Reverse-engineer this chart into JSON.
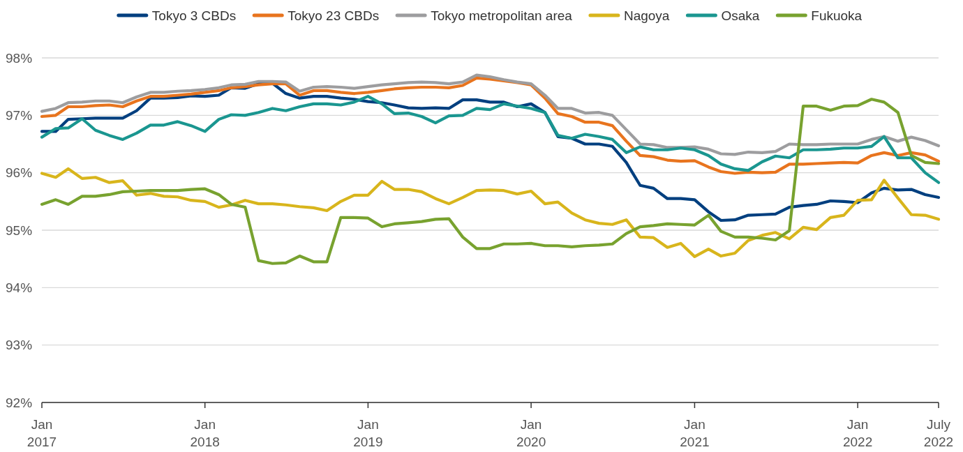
{
  "chart_data": {
    "type": "line",
    "x": [
      "2017-01",
      "2017-02",
      "2017-03",
      "2017-04",
      "2017-05",
      "2017-06",
      "2017-07",
      "2017-08",
      "2017-09",
      "2017-10",
      "2017-11",
      "2017-12",
      "2018-01",
      "2018-02",
      "2018-03",
      "2018-04",
      "2018-05",
      "2018-06",
      "2018-07",
      "2018-08",
      "2018-09",
      "2018-10",
      "2018-11",
      "2018-12",
      "2019-01",
      "2019-02",
      "2019-03",
      "2019-04",
      "2019-05",
      "2019-06",
      "2019-07",
      "2019-08",
      "2019-09",
      "2019-10",
      "2019-11",
      "2019-12",
      "2020-01",
      "2020-02",
      "2020-03",
      "2020-04",
      "2020-05",
      "2020-06",
      "2020-07",
      "2020-08",
      "2020-09",
      "2020-10",
      "2020-11",
      "2020-12",
      "2021-01",
      "2021-02",
      "2021-03",
      "2021-04",
      "2021-05",
      "2021-06",
      "2021-07",
      "2021-08",
      "2021-09",
      "2021-10",
      "2021-11",
      "2021-12",
      "2022-01",
      "2022-02",
      "2022-03",
      "2022-04",
      "2022-05",
      "2022-06",
      "2022-07"
    ],
    "series": [
      {
        "name": "Tokyo 3 CBDs",
        "color": "#003f7f",
        "values": [
          96.72,
          96.72,
          96.93,
          96.94,
          96.95,
          96.95,
          96.95,
          97.08,
          97.3,
          97.3,
          97.31,
          97.34,
          97.33,
          97.35,
          97.48,
          97.47,
          97.55,
          97.56,
          97.38,
          97.3,
          97.33,
          97.33,
          97.3,
          97.28,
          97.24,
          97.22,
          97.18,
          97.13,
          97.12,
          97.13,
          97.12,
          97.27,
          97.27,
          97.23,
          97.23,
          97.15,
          97.2,
          97.05,
          96.63,
          96.6,
          96.5,
          96.5,
          96.46,
          96.18,
          95.78,
          95.73,
          95.55,
          95.55,
          95.53,
          95.32,
          95.17,
          95.18,
          95.26,
          95.27,
          95.28,
          95.4,
          95.43,
          95.45,
          95.51,
          95.5,
          95.48,
          95.65,
          95.73,
          95.7,
          95.71,
          95.62,
          95.57
        ]
      },
      {
        "name": "Tokyo 23 CBDs",
        "color": "#e8741e",
        "values": [
          96.98,
          97.0,
          97.15,
          97.15,
          97.17,
          97.18,
          97.15,
          97.25,
          97.33,
          97.33,
          97.35,
          97.37,
          97.4,
          97.43,
          97.48,
          97.5,
          97.53,
          97.55,
          97.55,
          97.35,
          97.43,
          97.43,
          97.4,
          97.38,
          97.4,
          97.43,
          97.46,
          97.48,
          97.49,
          97.49,
          97.48,
          97.52,
          97.65,
          97.63,
          97.6,
          97.57,
          97.53,
          97.3,
          97.03,
          96.98,
          96.88,
          96.88,
          96.82,
          96.55,
          96.3,
          96.28,
          96.22,
          96.2,
          96.21,
          96.1,
          96.02,
          95.99,
          96.01,
          96.0,
          96.01,
          96.15,
          96.15,
          96.16,
          96.17,
          96.18,
          96.17,
          96.3,
          96.35,
          96.3,
          96.35,
          96.31,
          96.2
        ]
      },
      {
        "name": "Tokyo metropolitan area",
        "color": "#9d9d9f",
        "values": [
          97.07,
          97.12,
          97.22,
          97.23,
          97.25,
          97.25,
          97.22,
          97.32,
          97.4,
          97.4,
          97.42,
          97.43,
          97.45,
          97.48,
          97.53,
          97.54,
          97.59,
          97.59,
          97.58,
          97.42,
          97.49,
          97.5,
          97.49,
          97.47,
          97.5,
          97.53,
          97.55,
          97.57,
          97.58,
          97.57,
          97.55,
          97.58,
          97.7,
          97.67,
          97.62,
          97.58,
          97.55,
          97.35,
          97.12,
          97.12,
          97.04,
          97.05,
          97.0,
          96.75,
          96.5,
          96.49,
          96.44,
          96.44,
          96.45,
          96.41,
          96.33,
          96.32,
          96.36,
          96.35,
          96.37,
          96.5,
          96.49,
          96.49,
          96.5,
          96.5,
          96.5,
          96.58,
          96.63,
          96.55,
          96.62,
          96.56,
          96.47
        ]
      },
      {
        "name": "Nagoya",
        "color": "#d8b51c",
        "values": [
          95.99,
          95.92,
          96.07,
          95.9,
          95.92,
          95.83,
          95.86,
          95.61,
          95.64,
          95.59,
          95.58,
          95.52,
          95.5,
          95.4,
          95.44,
          95.52,
          95.46,
          95.46,
          95.44,
          95.41,
          95.39,
          95.34,
          95.5,
          95.61,
          95.61,
          95.85,
          95.71,
          95.71,
          95.67,
          95.55,
          95.46,
          95.57,
          95.69,
          95.7,
          95.69,
          95.63,
          95.68,
          95.46,
          95.49,
          95.3,
          95.18,
          95.12,
          95.1,
          95.18,
          94.88,
          94.87,
          94.7,
          94.77,
          94.54,
          94.67,
          94.55,
          94.6,
          94.82,
          94.91,
          94.96,
          94.85,
          95.05,
          95.01,
          95.22,
          95.26,
          95.52,
          95.53,
          95.87,
          95.56,
          95.27,
          95.26,
          95.19
        ]
      },
      {
        "name": "Osaka",
        "color": "#1a9690",
        "values": [
          96.62,
          96.77,
          96.78,
          96.94,
          96.74,
          96.65,
          96.58,
          96.69,
          96.83,
          96.83,
          96.89,
          96.82,
          96.72,
          96.93,
          97.01,
          97.0,
          97.05,
          97.12,
          97.08,
          97.15,
          97.2,
          97.2,
          97.18,
          97.23,
          97.33,
          97.2,
          97.03,
          97.04,
          96.98,
          96.87,
          96.99,
          97.0,
          97.12,
          97.1,
          97.2,
          97.16,
          97.12,
          97.05,
          96.65,
          96.6,
          96.67,
          96.63,
          96.58,
          96.35,
          96.45,
          96.4,
          96.4,
          96.43,
          96.4,
          96.3,
          96.15,
          96.07,
          96.04,
          96.19,
          96.29,
          96.26,
          96.4,
          96.4,
          96.41,
          96.43,
          96.43,
          96.46,
          96.63,
          96.26,
          96.26,
          96.0,
          95.83
        ]
      },
      {
        "name": "Fukuoka",
        "color": "#78a22f",
        "values": [
          95.45,
          95.53,
          95.45,
          95.59,
          95.59,
          95.62,
          95.67,
          95.68,
          95.69,
          95.69,
          95.69,
          95.71,
          95.72,
          95.62,
          95.45,
          95.4,
          94.47,
          94.42,
          94.43,
          94.55,
          94.45,
          94.45,
          95.22,
          95.22,
          95.21,
          95.06,
          95.11,
          95.13,
          95.15,
          95.19,
          95.2,
          94.88,
          94.68,
          94.68,
          94.76,
          94.76,
          94.77,
          94.73,
          94.73,
          94.71,
          94.73,
          94.74,
          94.76,
          94.94,
          95.06,
          95.08,
          95.11,
          95.1,
          95.09,
          95.26,
          94.98,
          94.88,
          94.88,
          94.86,
          94.83,
          94.99,
          97.16,
          97.16,
          97.09,
          97.16,
          97.17,
          97.28,
          97.23,
          97.05,
          96.3,
          96.18,
          96.16
        ]
      }
    ],
    "xlim": [
      "2017-01",
      "2022-07"
    ],
    "xticks": [
      {
        "value": "2017-01",
        "label": "Jan 2017"
      },
      {
        "value": "2018-01",
        "label": "Jan 2018"
      },
      {
        "value": "2019-01",
        "label": "Jan 2019"
      },
      {
        "value": "2020-01",
        "label": "Jan 2020"
      },
      {
        "value": "2021-01",
        "label": "Jan 2021"
      },
      {
        "value": "2022-01",
        "label": "Jan 2022"
      },
      {
        "value": "2022-07",
        "label": "July 2022"
      }
    ],
    "ylim": [
      92,
      98
    ],
    "yticks": [
      {
        "value": 92,
        "label": "92%"
      },
      {
        "value": 93,
        "label": "93%"
      },
      {
        "value": 94,
        "label": "94%"
      },
      {
        "value": 95,
        "label": "95%"
      },
      {
        "value": 96,
        "label": "96%"
      },
      {
        "value": 97,
        "label": "97%"
      },
      {
        "value": 98,
        "label": "98%"
      }
    ],
    "grid": "y",
    "legend": "top",
    "marker": "none",
    "line_style": "solid"
  }
}
